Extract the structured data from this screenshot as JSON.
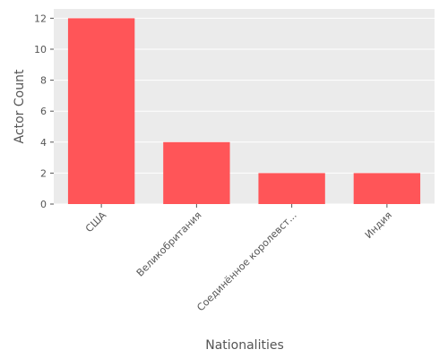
{
  "chart_data": {
    "type": "bar",
    "categories": [
      "США",
      "Великобритания",
      "Соединённое королевст...",
      "Индия"
    ],
    "values": [
      12,
      4,
      2,
      2
    ],
    "xlabel": "Nationalities",
    "ylabel": "Actor Count",
    "ylim": [
      0,
      12.6
    ],
    "yticks": [
      0,
      2,
      4,
      6,
      8,
      10,
      12
    ],
    "grid": true,
    "bar_color": "#ff5558",
    "plot_background": "#ebebeb",
    "grid_color": "#ffffff"
  }
}
